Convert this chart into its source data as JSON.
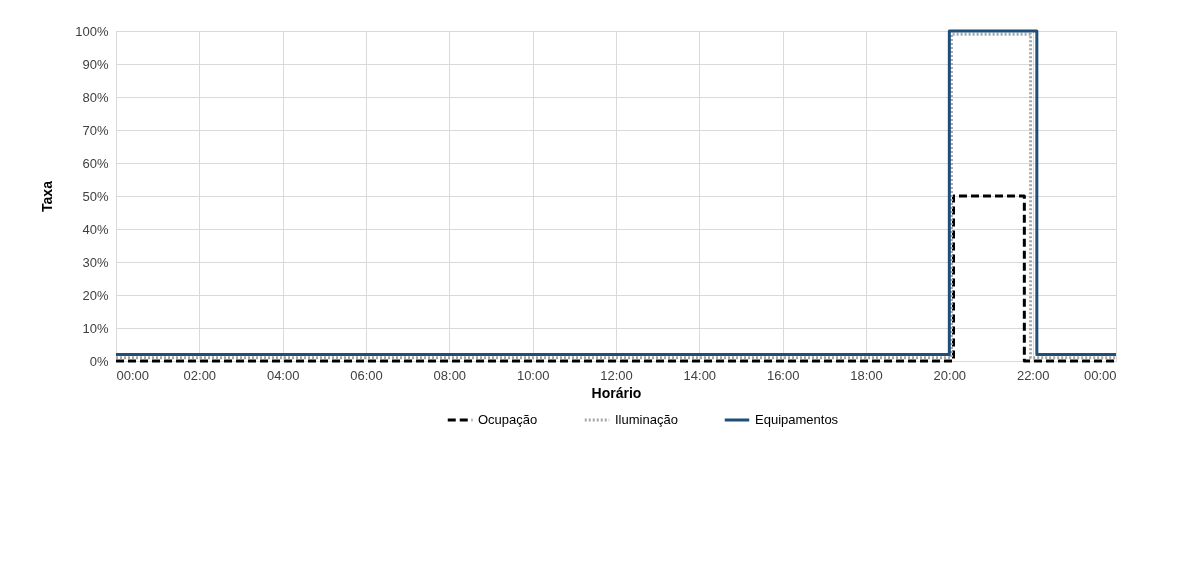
{
  "chart_data": {
    "type": "step",
    "xlabel": "Horário",
    "ylabel": "Taxa",
    "xlim": [
      0,
      24
    ],
    "xticks": [
      {
        "value": 0,
        "label": "00:00"
      },
      {
        "value": 2,
        "label": "02:00"
      },
      {
        "value": 4,
        "label": "04:00"
      },
      {
        "value": 6,
        "label": "06:00"
      },
      {
        "value": 8,
        "label": "08:00"
      },
      {
        "value": 10,
        "label": "10:00"
      },
      {
        "value": 12,
        "label": "12:00"
      },
      {
        "value": 14,
        "label": "14:00"
      },
      {
        "value": 16,
        "label": "16:00"
      },
      {
        "value": 18,
        "label": "18:00"
      },
      {
        "value": 20,
        "label": "20:00"
      },
      {
        "value": 22,
        "label": "22:00"
      },
      {
        "value": 24,
        "label": "00:00"
      }
    ],
    "ylim": [
      0,
      100
    ],
    "yticks": [
      {
        "value": 0,
        "label": "0%"
      },
      {
        "value": 10,
        "label": "10%"
      },
      {
        "value": 20,
        "label": "20%"
      },
      {
        "value": 30,
        "label": "30%"
      },
      {
        "value": 40,
        "label": "40%"
      },
      {
        "value": 50,
        "label": "50%"
      },
      {
        "value": 60,
        "label": "60%"
      },
      {
        "value": 70,
        "label": "70%"
      },
      {
        "value": 80,
        "label": "80%"
      },
      {
        "value": 90,
        "label": "90%"
      },
      {
        "value": 100,
        "label": "100%"
      }
    ],
    "grid": true,
    "legend": "bottom",
    "series": [
      {
        "name": "Ocupação",
        "color": "#000000",
        "line_style": "dashed",
        "x": [
          0,
          20.1,
          21.8,
          24
        ],
        "values": [
          0,
          50,
          0,
          0
        ]
      },
      {
        "name": "Iluminação",
        "color": "#a6a6a6",
        "line_style": "dotted",
        "x": [
          0,
          20.05,
          21.95,
          24
        ],
        "values": [
          1,
          99,
          1,
          1
        ]
      },
      {
        "name": "Equipamentos",
        "color": "#1f4e79",
        "line_style": "solid",
        "x": [
          0,
          20,
          22.1,
          24
        ],
        "values": [
          2,
          100,
          2,
          2
        ]
      }
    ]
  }
}
